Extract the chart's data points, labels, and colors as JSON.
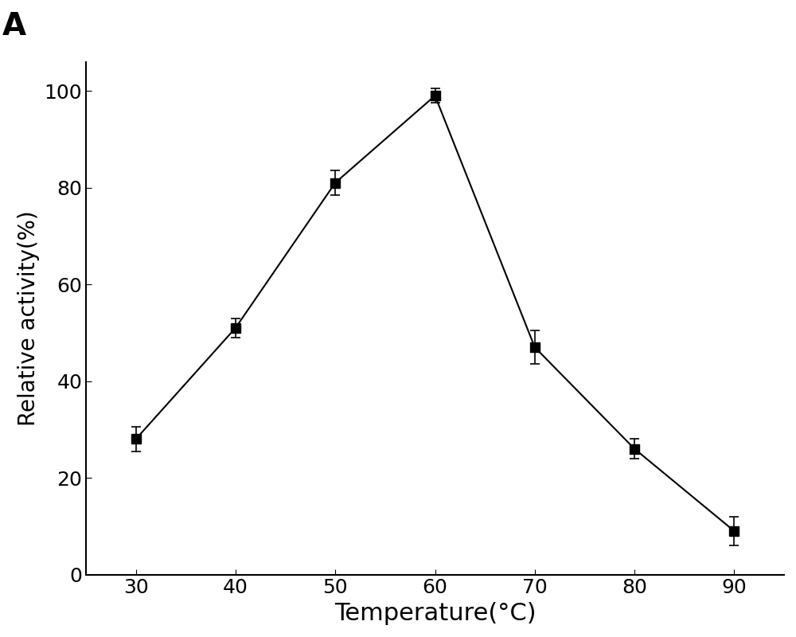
{
  "x": [
    30,
    40,
    50,
    60,
    70,
    80,
    90
  ],
  "y": [
    28,
    51,
    81,
    99,
    47,
    26,
    9
  ],
  "yerr": [
    2.5,
    2.0,
    2.5,
    1.5,
    3.5,
    2.0,
    3.0
  ],
  "xlabel": "Temperature(°C)",
  "ylabel": "Relative activity(%)",
  "xlim": [
    25,
    95
  ],
  "ylim": [
    0,
    106
  ],
  "xticks": [
    30,
    40,
    50,
    60,
    70,
    80,
    90
  ],
  "yticks": [
    0,
    20,
    40,
    60,
    80,
    100
  ],
  "panel_label": "A",
  "background_color": "#ffffff",
  "line_color": "#000000",
  "marker_color": "#000000",
  "marker": "-s",
  "marker_size": 8,
  "line_width": 1.5,
  "capsize": 4,
  "xlabel_fontsize": 22,
  "ylabel_fontsize": 20,
  "tick_fontsize": 18,
  "panel_label_fontsize": 28
}
